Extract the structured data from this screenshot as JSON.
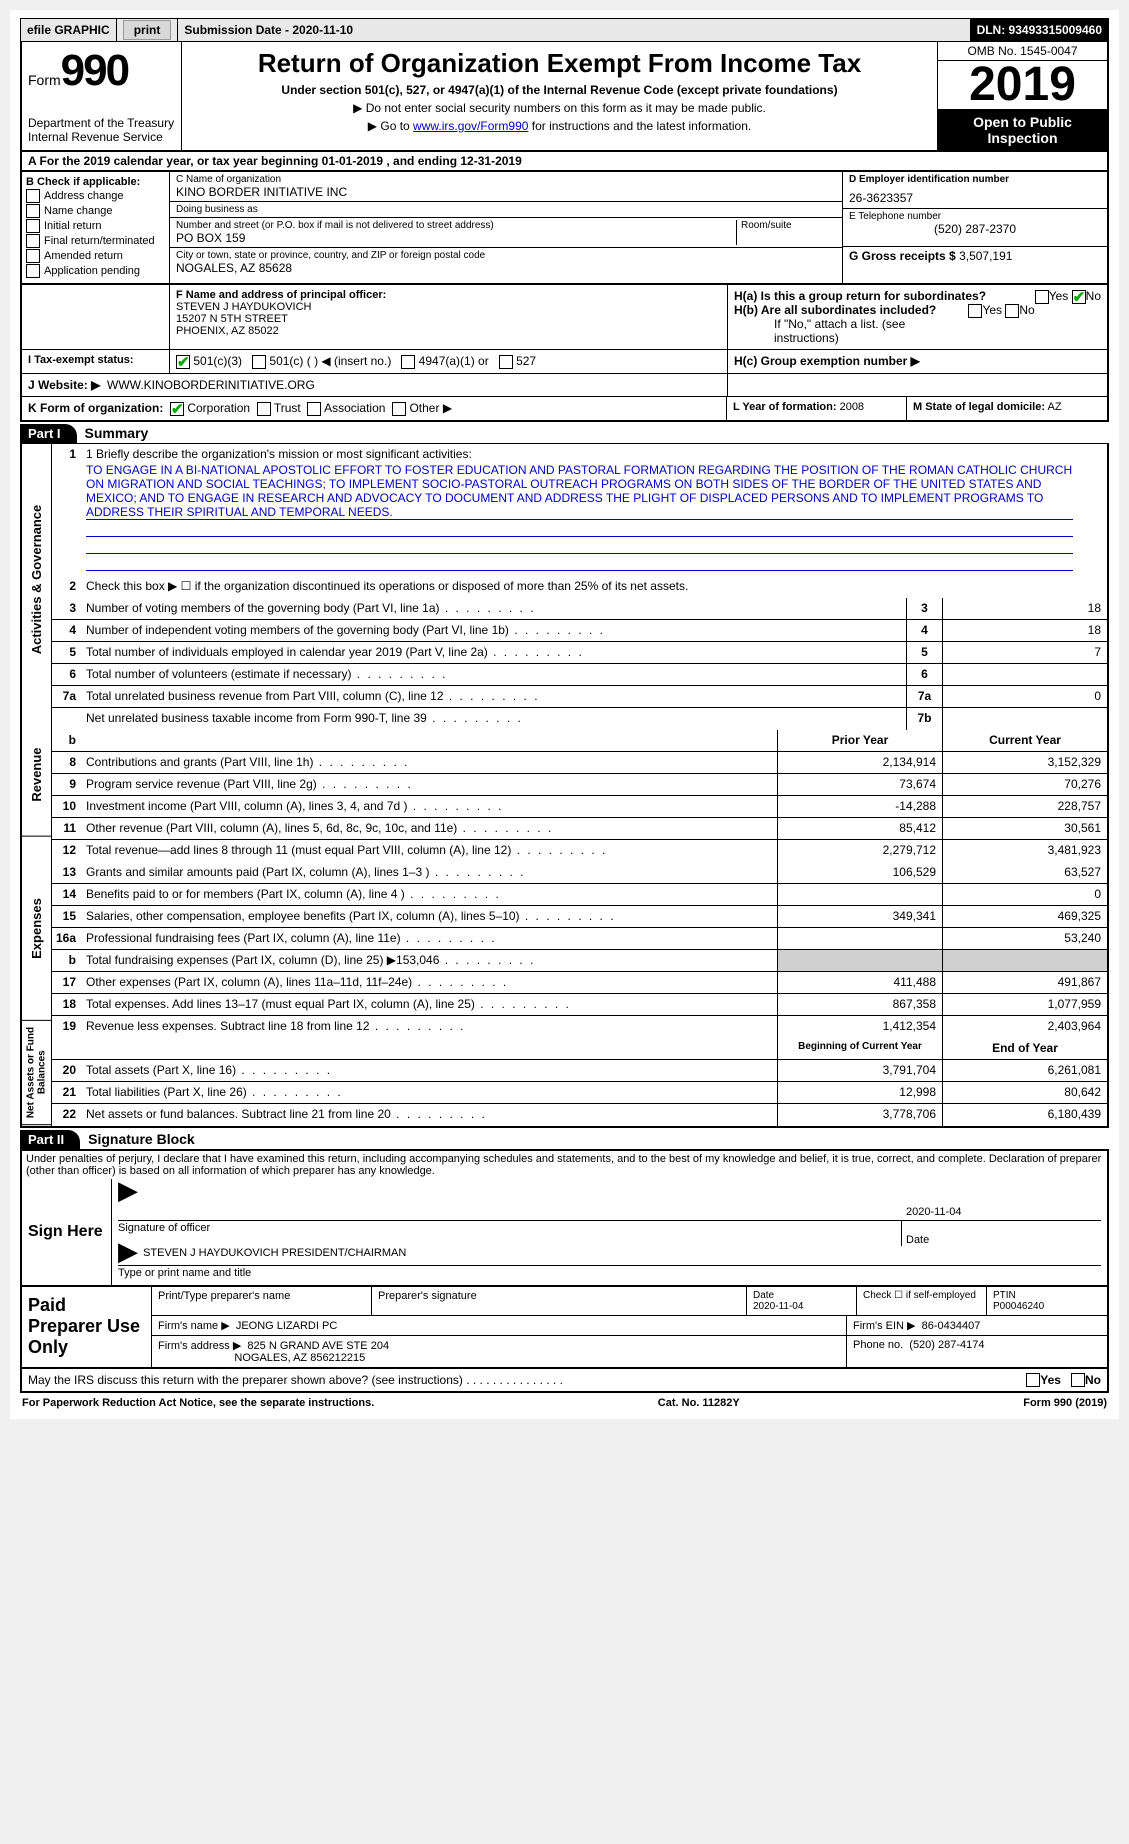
{
  "topbar": {
    "efile_label": "efile GRAPHIC",
    "print_btn": "print",
    "submission_label": "Submission Date - 2020-11-10",
    "dln_label": "DLN: 93493315009460"
  },
  "header": {
    "form_label": "Form",
    "form_number": "990",
    "dept": "Department of the Treasury\nInternal Revenue Service",
    "title": "Return of Organization Exempt From Income Tax",
    "subtitle": "Under section 501(c), 527, or 4947(a)(1) of the Internal Revenue Code (except private foundations)",
    "arrow1": "▶ Do not enter social security numbers on this form as it may be made public.",
    "arrow2_pre": "▶ Go to ",
    "arrow2_link": "www.irs.gov/Form990",
    "arrow2_post": " for instructions and the latest information.",
    "omb": "OMB No. 1545-0047",
    "year": "2019",
    "open_pub": "Open to Public Inspection"
  },
  "row_a": "A For the 2019 calendar year, or tax year beginning 01-01-2019     , and ending 12-31-2019",
  "col_b": {
    "header": "B Check if applicable:",
    "items": [
      "Address change",
      "Name change",
      "Initial return",
      "Final return/terminated",
      "Amended return",
      "Application pending"
    ]
  },
  "col_c": {
    "name_label": "C Name of organization",
    "name": "KINO BORDER INITIATIVE INC",
    "dba_label": "Doing business as",
    "dba": "",
    "addr_label": "Number and street (or P.O. box if mail is not delivered to street address)",
    "room_label": "Room/suite",
    "addr": "PO BOX 159",
    "city_label": "City or town, state or province, country, and ZIP or foreign postal code",
    "city": "NOGALES, AZ  85628"
  },
  "col_d": {
    "ein_label": "D Employer identification number",
    "ein": "26-3623357",
    "tel_label": "E Telephone number",
    "tel": "(520) 287-2370",
    "gross_label": "G Gross receipts $",
    "gross": "3,507,191"
  },
  "section_f": {
    "label": "F Name and address of principal officer:",
    "name": "STEVEN J HAYDUKOVICH",
    "addr1": "15207 N 5TH STREET",
    "addr2": "PHOENIX, AZ  85022"
  },
  "section_h": {
    "ha": "H(a)  Is this a group return for subordinates?",
    "hb": "H(b)  Are all subordinates included?",
    "h_note": "If \"No,\" attach a list. (see instructions)",
    "hc": "H(c)  Group exemption number ▶",
    "yes": "Yes",
    "no": "No"
  },
  "row_i": {
    "label": "I   Tax-exempt status:",
    "opts": [
      "501(c)(3)",
      "501(c) (   ) ◀ (insert no.)",
      "4947(a)(1) or",
      "527"
    ]
  },
  "row_j": {
    "label": "J   Website: ▶",
    "value": "WWW.KINOBORDERINITIATIVE.ORG"
  },
  "row_k": {
    "label": "K Form of organization:",
    "opts": [
      "Corporation",
      "Trust",
      "Association",
      "Other ▶"
    ]
  },
  "row_l": {
    "label": "L Year of formation:",
    "value": "2008"
  },
  "row_m": {
    "label": "M State of legal domicile:",
    "value": "AZ"
  },
  "part1": {
    "tag": "Part I",
    "title": "Summary"
  },
  "governance": {
    "side": "Activities & Governance",
    "line1_label": "1  Briefly describe the organization's mission or most significant activities:",
    "mission": "TO ENGAGE IN A BI-NATIONAL APOSTOLIC EFFORT TO FOSTER EDUCATION AND PASTORAL FORMATION REGARDING THE POSITION OF THE ROMAN CATHOLIC CHURCH ON MIGRATION AND SOCIAL TEACHINGS; TO IMPLEMENT SOCIO-PASTORAL OUTREACH PROGRAMS ON BOTH SIDES OF THE BORDER OF THE UNITED STATES AND MEXICO; AND TO ENGAGE IN RESEARCH AND ADVOCACY TO DOCUMENT AND ADDRESS THE PLIGHT OF DISPLACED PERSONS AND TO IMPLEMENT PROGRAMS TO ADDRESS THEIR SPIRITUAL AND TEMPORAL NEEDS.",
    "line2": "Check this box ▶ ☐ if the organization discontinued its operations or disposed of more than 25% of its net assets.",
    "lines": [
      {
        "n": "3",
        "txt": "Number of voting members of the governing body (Part VI, line 1a)",
        "box": "3",
        "val": "18"
      },
      {
        "n": "4",
        "txt": "Number of independent voting members of the governing body (Part VI, line 1b)",
        "box": "4",
        "val": "18"
      },
      {
        "n": "5",
        "txt": "Total number of individuals employed in calendar year 2019 (Part V, line 2a)",
        "box": "5",
        "val": "7"
      },
      {
        "n": "6",
        "txt": "Total number of volunteers (estimate if necessary)",
        "box": "6",
        "val": ""
      },
      {
        "n": "7a",
        "txt": "Total unrelated business revenue from Part VIII, column (C), line 12",
        "box": "7a",
        "val": "0"
      },
      {
        "n": "",
        "txt": "Net unrelated business taxable income from Form 990-T, line 39",
        "box": "7b",
        "val": ""
      }
    ]
  },
  "revenue": {
    "side": "Revenue",
    "hdr_b": "b",
    "prior": "Prior Year",
    "current": "Current Year",
    "lines": [
      {
        "n": "8",
        "txt": "Contributions and grants (Part VIII, line 1h)",
        "p": "2,134,914",
        "c": "3,152,329"
      },
      {
        "n": "9",
        "txt": "Program service revenue (Part VIII, line 2g)",
        "p": "73,674",
        "c": "70,276"
      },
      {
        "n": "10",
        "txt": "Investment income (Part VIII, column (A), lines 3, 4, and 7d )",
        "p": "-14,288",
        "c": "228,757"
      },
      {
        "n": "11",
        "txt": "Other revenue (Part VIII, column (A), lines 5, 6d, 8c, 9c, 10c, and 11e)",
        "p": "85,412",
        "c": "30,561"
      },
      {
        "n": "12",
        "txt": "Total revenue—add lines 8 through 11 (must equal Part VIII, column (A), line 12)",
        "p": "2,279,712",
        "c": "3,481,923"
      }
    ]
  },
  "expenses": {
    "side": "Expenses",
    "lines": [
      {
        "n": "13",
        "txt": "Grants and similar amounts paid (Part IX, column (A), lines 1–3 )",
        "p": "106,529",
        "c": "63,527"
      },
      {
        "n": "14",
        "txt": "Benefits paid to or for members (Part IX, column (A), line 4 )",
        "p": "",
        "c": "0"
      },
      {
        "n": "15",
        "txt": "Salaries, other compensation, employee benefits (Part IX, column (A), lines 5–10)",
        "p": "349,341",
        "c": "469,325"
      },
      {
        "n": "16a",
        "txt": "Professional fundraising fees (Part IX, column (A), line 11e)",
        "p": "",
        "c": "53,240"
      },
      {
        "n": "b",
        "txt": "Total fundraising expenses (Part IX, column (D), line 25) ▶153,046",
        "p": "__GRAY__",
        "c": "__GRAY__"
      },
      {
        "n": "17",
        "txt": "Other expenses (Part IX, column (A), lines 11a–11d, 11f–24e)",
        "p": "411,488",
        "c": "491,867"
      },
      {
        "n": "18",
        "txt": "Total expenses. Add lines 13–17 (must equal Part IX, column (A), line 25)",
        "p": "867,358",
        "c": "1,077,959"
      },
      {
        "n": "19",
        "txt": "Revenue less expenses. Subtract line 18 from line 12",
        "p": "1,412,354",
        "c": "2,403,964"
      }
    ]
  },
  "netassets": {
    "side": "Net Assets or Fund Balances",
    "hdr_p": "Beginning of Current Year",
    "hdr_c": "End of Year",
    "lines": [
      {
        "n": "20",
        "txt": "Total assets (Part X, line 16)",
        "p": "3,791,704",
        "c": "6,261,081"
      },
      {
        "n": "21",
        "txt": "Total liabilities (Part X, line 26)",
        "p": "12,998",
        "c": "80,642"
      },
      {
        "n": "22",
        "txt": "Net assets or fund balances. Subtract line 21 from line 20",
        "p": "3,778,706",
        "c": "6,180,439"
      }
    ]
  },
  "part2": {
    "tag": "Part II",
    "title": "Signature Block"
  },
  "penalties": "Under penalties of perjury, I declare that I have examined this return, including accompanying schedules and statements, and to the best of my knowledge and belief, it is true, correct, and complete. Declaration of preparer (other than officer) is based on all information of which preparer has any knowledge.",
  "sign": {
    "label": "Sign Here",
    "sig_officer": "Signature of officer",
    "date_lbl": "Date",
    "sig_date": "2020-11-04",
    "name_title": "STEVEN J HAYDUKOVICH   PRESIDENT/CHAIRMAN",
    "type_lbl": "Type or print name and title"
  },
  "preparer": {
    "label": "Paid Preparer Use Only",
    "print_name_lbl": "Print/Type preparer's name",
    "sig_lbl": "Preparer's signature",
    "date_lbl": "Date",
    "date": "2020-11-04",
    "check_lbl": "Check ☐ if self-employed",
    "ptin_lbl": "PTIN",
    "ptin": "P00046240",
    "firm_name_lbl": "Firm's name    ▶",
    "firm_name": "JEONG LIZARDI PC",
    "firm_ein_lbl": "Firm's EIN ▶",
    "firm_ein": "86-0434407",
    "firm_addr_lbl": "Firm's address ▶",
    "firm_addr": "825 N GRAND AVE STE 204",
    "firm_city": "NOGALES, AZ  856212215",
    "phone_lbl": "Phone no.",
    "phone": "(520) 287-4174"
  },
  "may_irs": {
    "txt": "May the IRS discuss this return with the preparer shown above? (see instructions)",
    "yes": "Yes",
    "no": "No"
  },
  "footer": {
    "left": "For Paperwork Reduction Act Notice, see the separate instructions.",
    "mid": "Cat. No. 11282Y",
    "right": "Form 990 (2019)"
  }
}
